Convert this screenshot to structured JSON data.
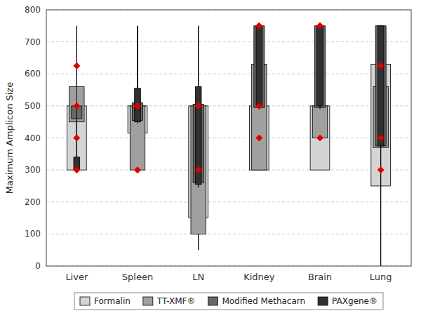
{
  "chart_data": {
    "type": "box",
    "y_label": "Maximum Amplicon Size",
    "categories": [
      "Liver",
      "Spleen",
      "LN",
      "Kidney",
      "Brain",
      "Lung"
    ],
    "series": [
      {
        "name": "Formalin",
        "color": "#d4d4d4",
        "low": [
          300,
          300,
          50,
          300,
          300,
          0
        ],
        "q1": [
          300,
          415,
          150,
          300,
          300,
          250
        ],
        "q3": [
          500,
          500,
          500,
          500,
          500,
          630
        ],
        "high": [
          500,
          750,
          750,
          500,
          500,
          750
        ],
        "mean": [
          400,
          300,
          300,
          400,
          400,
          300
        ]
      },
      {
        "name": "TT-XMF®",
        "color": "#a0a0a0",
        "low": [
          300,
          300,
          50,
          300,
          400,
          250
        ],
        "q1": [
          450,
          300,
          100,
          300,
          400,
          370
        ],
        "q3": [
          560,
          500,
          500,
          630,
          500,
          560
        ],
        "high": [
          750,
          750,
          750,
          750,
          700,
          750
        ],
        "mean": [
          625,
          500,
          500,
          500,
          400,
          400
        ]
      },
      {
        "name": "Modified Methacarn",
        "color": "#686868",
        "low": [
          300,
          450,
          250,
          490,
          490,
          370
        ],
        "q1": [
          460,
          455,
          260,
          495,
          495,
          375
        ],
        "q3": [
          500,
          510,
          505,
          750,
          750,
          750
        ],
        "high": [
          750,
          560,
          560,
          750,
          750,
          750
        ],
        "mean": [
          500,
          500,
          500,
          750,
          750,
          625
        ]
      },
      {
        "name": "PAXgene®",
        "color": "#303030",
        "low": [
          300,
          445,
          245,
          495,
          495,
          0
        ],
        "q1": [
          300,
          450,
          255,
          500,
          500,
          375
        ],
        "q3": [
          340,
          555,
          560,
          750,
          750,
          750
        ],
        "high": [
          500,
          750,
          750,
          750,
          750,
          750
        ],
        "mean": [
          300,
          500,
          500,
          750,
          750,
          625
        ]
      }
    ],
    "ylim": [
      0,
      800
    ],
    "yticks": [
      0,
      100,
      200,
      300,
      400,
      500,
      600,
      700,
      800
    ],
    "grid": true,
    "legend": "bottom",
    "marker": "diamond"
  }
}
